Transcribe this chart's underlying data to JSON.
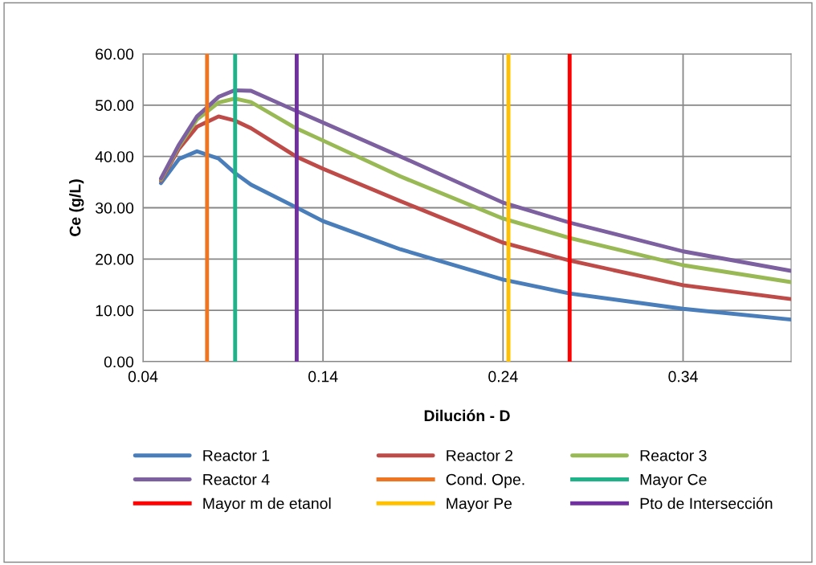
{
  "chart_data": {
    "type": "line",
    "xlabel": "Dilución - D",
    "ylabel": "Ce (g/L)",
    "xlim": [
      0.04,
      0.4
    ],
    "xticks": [
      0.04,
      0.14,
      0.24,
      0.34
    ],
    "ylim": [
      0,
      60
    ],
    "yticks": [
      {
        "value": 0,
        "label": "0.00"
      },
      {
        "value": 10,
        "label": "10.00"
      },
      {
        "value": 20,
        "label": "20.00"
      },
      {
        "value": 30,
        "label": "30.00"
      },
      {
        "value": 40,
        "label": "40.00"
      },
      {
        "value": 50,
        "label": "50.00"
      },
      {
        "value": 60,
        "label": "60.00"
      }
    ],
    "grid": true,
    "legend": "bottom",
    "marker": "none",
    "line_style": "solid",
    "x": [
      0.05,
      0.06,
      0.07,
      0.082,
      0.091,
      0.1,
      0.125,
      0.14,
      0.183,
      0.24,
      0.277,
      0.34,
      0.4
    ],
    "series": [
      {
        "name": "Reactor 1",
        "color": "#4a7ebb",
        "values": [
          34.8,
          39.5,
          41.0,
          39.6,
          36.8,
          34.5,
          30.1,
          27.4,
          21.9,
          16.0,
          13.3,
          10.3,
          8.2
        ]
      },
      {
        "name": "Reactor 2",
        "color": "#be4b48",
        "values": [
          35.3,
          41.5,
          45.8,
          47.8,
          47.0,
          45.5,
          40.0,
          37.6,
          31.3,
          23.2,
          19.7,
          14.9,
          12.2
        ]
      },
      {
        "name": "Reactor 3",
        "color": "#98b954",
        "values": [
          35.5,
          42.0,
          47.2,
          50.5,
          51.3,
          50.6,
          45.5,
          43.1,
          36.1,
          27.9,
          24.1,
          18.8,
          15.5
        ]
      },
      {
        "name": "Reactor 4",
        "color": "#7d60a0",
        "values": [
          35.7,
          42.3,
          47.8,
          51.6,
          52.9,
          52.8,
          48.9,
          46.6,
          40.0,
          31.0,
          27.1,
          21.5,
          17.7
        ]
      }
    ],
    "ref_lines": [
      {
        "axis": "x",
        "value": 0.0756,
        "label": "Cond. Ope.",
        "color": "#ee7623"
      },
      {
        "axis": "x",
        "value": 0.0912,
        "label": "Mayor Ce",
        "color": "#1fb38a"
      },
      {
        "axis": "x",
        "value": 0.277,
        "label": "Mayor m de etanol",
        "color": "#ff0000"
      },
      {
        "axis": "x",
        "value": 0.243,
        "label": "Mayor Pe",
        "color": "#ffc000"
      },
      {
        "axis": "x",
        "value": 0.1254,
        "label": "Pto de Intersección",
        "color": "#7030a0"
      }
    ]
  }
}
